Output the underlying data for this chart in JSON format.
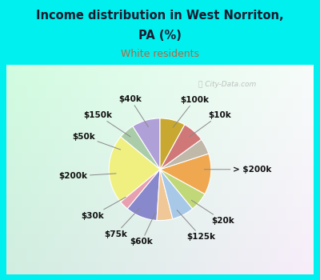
{
  "title_line1": "Income distribution in West Norriton,",
  "title_line2": "PA (%)",
  "subtitle": "White residents",
  "title_color": "#1a1a2e",
  "subtitle_color": "#b06840",
  "bg_cyan": "#00f0f0",
  "chart_box_color": "#e8f5ee",
  "watermark": "ⓘ City-Data.com",
  "labels": [
    "$100k",
    "$10k",
    "> $200k",
    "$20k",
    "$125k",
    "$60k",
    "$75k",
    "$30k",
    "$200k",
    "$50k",
    "$150k",
    "$40k"
  ],
  "values": [
    9,
    5,
    22,
    3,
    10,
    5,
    7,
    6,
    13,
    5,
    7,
    8
  ],
  "colors": [
    "#b0a0d8",
    "#aacca8",
    "#f0f080",
    "#e8a0b0",
    "#8888cc",
    "#f0c898",
    "#a8c8e8",
    "#c0d878",
    "#f0a850",
    "#c0b8a8",
    "#d07878",
    "#c8a830"
  ],
  "startangle": 90,
  "label_fontsize": 7.5
}
